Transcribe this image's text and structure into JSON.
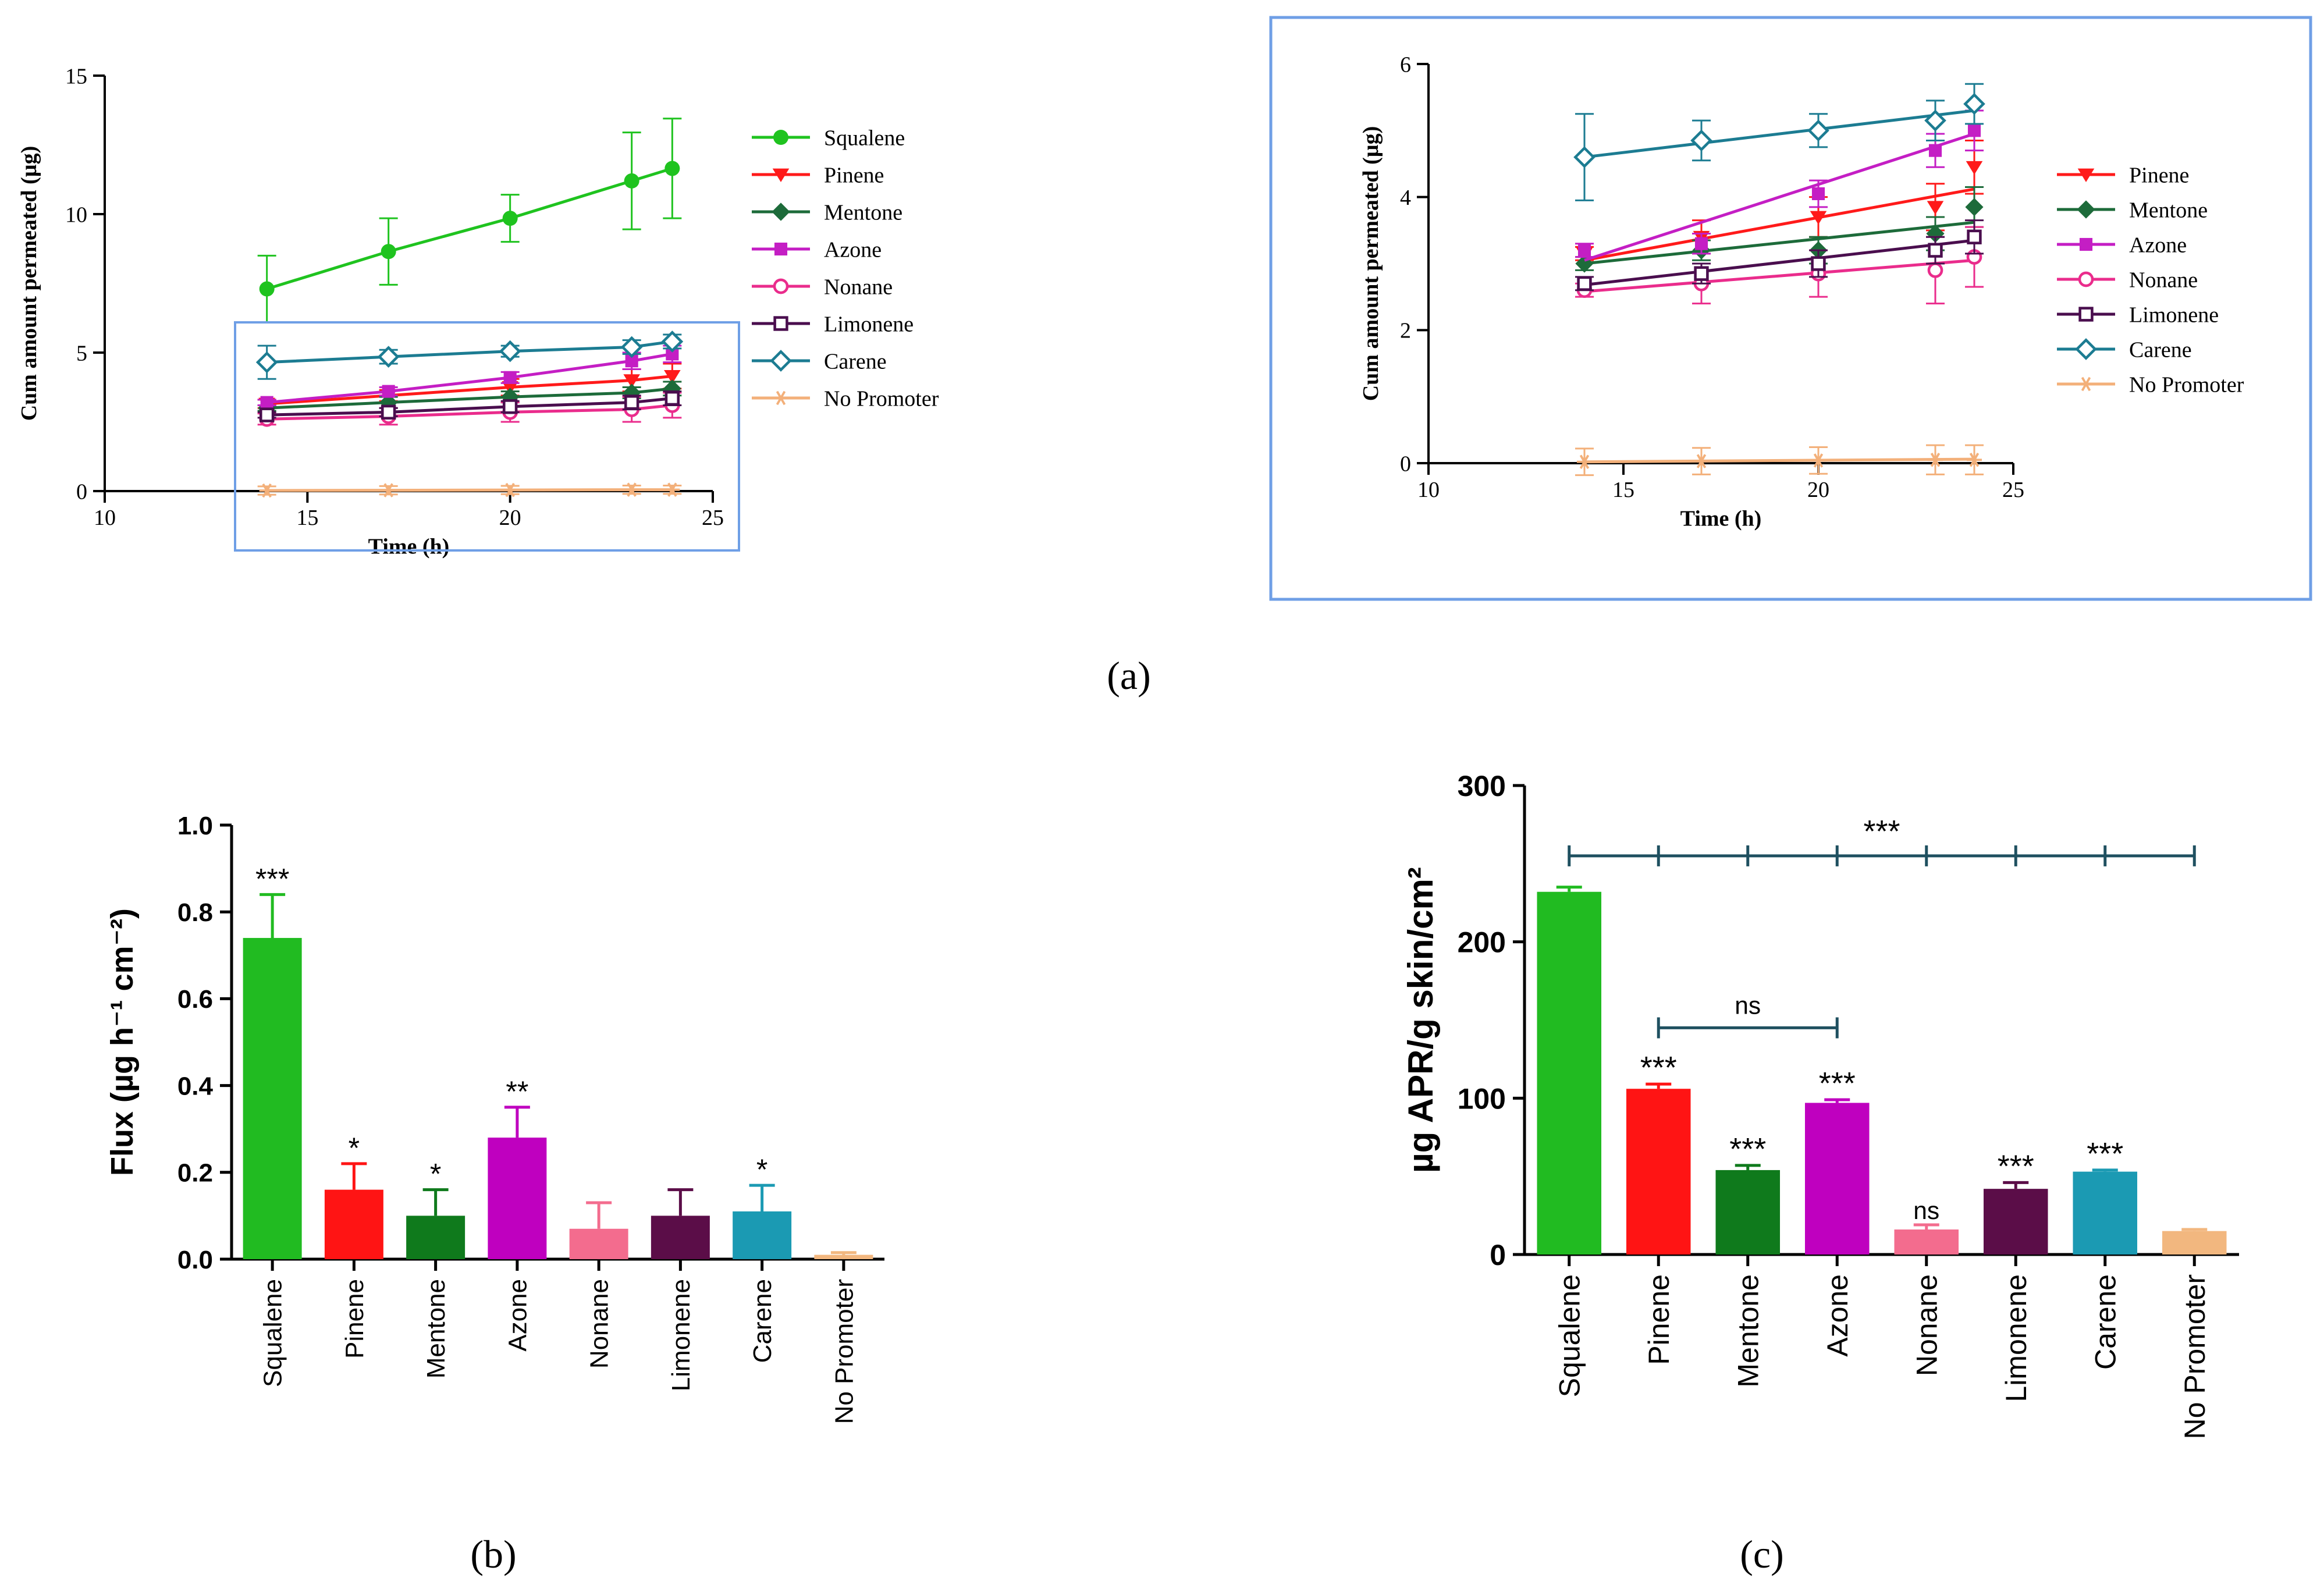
{
  "panel_labels": [
    "(a)",
    "(b)",
    "(c)"
  ],
  "chart_data": [
    {
      "id": "a-main",
      "type": "line",
      "title": "",
      "xlabel": "Time (h)",
      "ylabel": "Cum amount permeated (µg)",
      "xlim": [
        10,
        25
      ],
      "ylim": [
        0,
        15
      ],
      "xticks": [
        "10",
        "15",
        "20",
        "25"
      ],
      "yticks": [
        "0",
        "5",
        "10",
        "15"
      ],
      "x": [
        14,
        17,
        20,
        23,
        24
      ],
      "legend_position": "right",
      "series": [
        {
          "name": "Squalene",
          "color": "#1fc31f",
          "marker": "circle-filled",
          "values": [
            7.3,
            8.65,
            9.85,
            11.2,
            11.65
          ],
          "errors": [
            1.2,
            1.2,
            0.85,
            1.75,
            1.8
          ]
        },
        {
          "name": "Pinene",
          "color": "#ff1a1a",
          "marker": "triangle-down",
          "values": [
            3.15,
            3.45,
            3.75,
            4.0,
            4.15
          ],
          "errors": [
            0.15,
            0.2,
            0.3,
            0.4,
            0.45
          ]
        },
        {
          "name": "Mentone",
          "color": "#1d6b3a",
          "marker": "diamond-filled",
          "values": [
            3.0,
            3.2,
            3.4,
            3.55,
            3.7
          ],
          "errors": [
            0.1,
            0.2,
            0.2,
            0.2,
            0.25
          ]
        },
        {
          "name": "Azone",
          "color": "#c41ec4",
          "marker": "square-filled",
          "values": [
            3.2,
            3.6,
            4.1,
            4.7,
            4.95
          ],
          "errors": [
            0.1,
            0.15,
            0.2,
            0.3,
            0.3
          ]
        },
        {
          "name": "Nonane",
          "color": "#ea2c8c",
          "marker": "circle-open",
          "values": [
            2.6,
            2.7,
            2.85,
            2.95,
            3.1
          ],
          "errors": [
            0.2,
            0.3,
            0.35,
            0.45,
            0.45
          ]
        },
        {
          "name": "Limonene",
          "color": "#4a0e4e",
          "marker": "square-open",
          "values": [
            2.75,
            2.85,
            3.05,
            3.2,
            3.35
          ],
          "errors": [
            0.1,
            0.15,
            0.2,
            0.25,
            0.25
          ]
        },
        {
          "name": "Carene",
          "color": "#1c7c92",
          "marker": "diamond-open",
          "values": [
            4.65,
            4.85,
            5.05,
            5.2,
            5.4
          ],
          "errors": [
            0.6,
            0.25,
            0.2,
            0.25,
            0.25
          ]
        },
        {
          "name": "No Promoter",
          "color": "#f3b07a",
          "marker": "star",
          "values": [
            0.02,
            0.03,
            0.04,
            0.05,
            0.05
          ],
          "errors": [
            0.15,
            0.15,
            0.15,
            0.15,
            0.15
          ]
        }
      ]
    },
    {
      "id": "a-inset",
      "type": "line",
      "title": "",
      "xlabel": "Time (h)",
      "ylabel": "Cum amount permeated (µg)",
      "xlim": [
        10,
        25
      ],
      "ylim": [
        0,
        6
      ],
      "xticks": [
        "10",
        "15",
        "20",
        "25"
      ],
      "yticks": [
        "0",
        "2",
        "4",
        "6"
      ],
      "x": [
        14,
        17,
        20,
        23,
        24
      ],
      "legend_position": "right",
      "series": [
        {
          "name": "Pinene",
          "color": "#ff1a1a",
          "marker": "triangle-down",
          "values": [
            3.15,
            3.4,
            3.7,
            3.85,
            4.45
          ],
          "errors": [
            0.1,
            0.25,
            0.3,
            0.35,
            0.4
          ],
          "fit": [
            3.05,
            4.12
          ]
        },
        {
          "name": "Mentone",
          "color": "#1d6b3a",
          "marker": "diamond-filled",
          "values": [
            3.0,
            3.2,
            3.2,
            3.45,
            3.85
          ],
          "errors": [
            0.1,
            0.15,
            0.2,
            0.25,
            0.3
          ],
          "fit": [
            3.0,
            3.62
          ]
        },
        {
          "name": "Azone",
          "color": "#c41ec4",
          "marker": "square-filled",
          "values": [
            3.2,
            3.3,
            4.05,
            4.7,
            5.0
          ],
          "errors": [
            0.1,
            0.15,
            0.2,
            0.25,
            0.3
          ],
          "fit": [
            3.05,
            4.95
          ]
        },
        {
          "name": "Nonane",
          "color": "#ea2c8c",
          "marker": "circle-open",
          "values": [
            2.6,
            2.7,
            2.85,
            2.9,
            3.1
          ],
          "errors": [
            0.1,
            0.3,
            0.35,
            0.5,
            0.45
          ],
          "fit": [
            2.58,
            3.05
          ]
        },
        {
          "name": "Limonene",
          "color": "#4a0e4e",
          "marker": "square-open",
          "values": [
            2.7,
            2.85,
            3.0,
            3.2,
            3.4
          ],
          "errors": [
            0.1,
            0.15,
            0.2,
            0.2,
            0.25
          ],
          "fit": [
            2.68,
            3.35
          ]
        },
        {
          "name": "Carene",
          "color": "#1c7c92",
          "marker": "diamond-open",
          "values": [
            4.6,
            4.85,
            5.0,
            5.15,
            5.4
          ],
          "errors": [
            0.65,
            0.3,
            0.25,
            0.3,
            0.3
          ],
          "fit": [
            4.6,
            5.3
          ]
        },
        {
          "name": "No Promoter",
          "color": "#f3b07a",
          "marker": "star",
          "values": [
            0.02,
            0.03,
            0.04,
            0.05,
            0.05
          ],
          "errors": [
            0.2,
            0.2,
            0.2,
            0.22,
            0.22
          ],
          "fit": [
            0.02,
            0.06
          ]
        }
      ]
    },
    {
      "id": "b",
      "type": "bar",
      "title": "",
      "xlabel": "",
      "ylabel": "Flux (µg h⁻¹ cm⁻²)",
      "ylim": [
        0,
        1.0
      ],
      "yticks": [
        "0.0",
        "0.2",
        "0.4",
        "0.6",
        "0.8",
        "1.0"
      ],
      "categories": [
        "Squalene",
        "Pinene",
        "Mentone",
        "Azone",
        "Nonane",
        "Limonene",
        "Carene",
        "No Promoter"
      ],
      "values": [
        0.74,
        0.16,
        0.1,
        0.28,
        0.07,
        0.1,
        0.11,
        0.01
      ],
      "errors": [
        0.1,
        0.06,
        0.06,
        0.07,
        0.06,
        0.06,
        0.06,
        0.005
      ],
      "colors": [
        "#21bb21",
        "#ff1414",
        "#0f7a1c",
        "#bf00bf",
        "#f36c8e",
        "#5b0d48",
        "#1b9ab3",
        "#f2b77f"
      ],
      "significance": [
        "***",
        "*",
        "*",
        "**",
        "",
        "",
        "*",
        ""
      ]
    },
    {
      "id": "c",
      "type": "bar",
      "title": "",
      "xlabel": "",
      "ylabel": "µg APR/g skin/cm²",
      "ylim": [
        0,
        300
      ],
      "yticks": [
        "0",
        "100",
        "200",
        "300"
      ],
      "categories": [
        "Squalene",
        "Pinene",
        "Mentone",
        "Azone",
        "Nonane",
        "Limonene",
        "Carene",
        "No Promoter"
      ],
      "values": [
        232,
        106,
        54,
        97,
        16,
        42,
        53,
        15
      ],
      "errors": [
        3,
        3,
        3,
        2,
        3,
        4,
        1,
        1
      ],
      "colors": [
        "#21bb21",
        "#ff1414",
        "#0f7a1c",
        "#bf00bf",
        "#f36c8e",
        "#5b0d48",
        "#1b9ab3",
        "#f2b77f"
      ],
      "significance": [
        "",
        "***",
        "***",
        "***",
        "ns",
        "***",
        "***",
        ""
      ],
      "bracket_top": {
        "label": "***",
        "value": 255,
        "from": 0,
        "to": 7
      },
      "bracket_ns": {
        "label": "ns",
        "value": 145,
        "from": 1,
        "to": 3
      }
    }
  ]
}
